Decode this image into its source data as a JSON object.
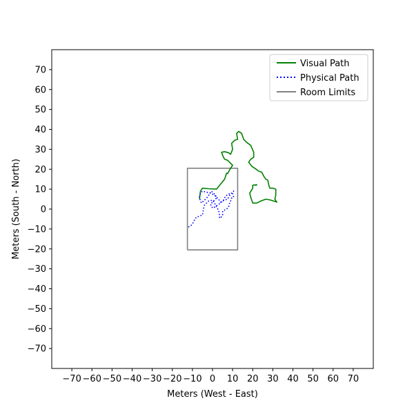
{
  "chart_data": {
    "type": "line",
    "title": "",
    "xlabel": "Meters (West - East)",
    "ylabel": "Meters (South - North)",
    "xlim": [
      -80,
      80
    ],
    "ylim": [
      -80,
      80
    ],
    "xticks": [
      -70,
      -60,
      -50,
      -40,
      -30,
      -20,
      -10,
      0,
      10,
      20,
      30,
      40,
      50,
      60,
      70
    ],
    "yticks": [
      -70,
      -60,
      -50,
      -40,
      -30,
      -20,
      -10,
      0,
      10,
      20,
      30,
      40,
      50,
      60,
      70
    ],
    "xtick_labels": [
      "−70",
      "−60",
      "−50",
      "−40",
      "−30",
      "−20",
      "−10",
      "0",
      "10",
      "20",
      "30",
      "40",
      "50",
      "60",
      "70"
    ],
    "ytick_labels": [
      "−70",
      "−60",
      "−50",
      "−40",
      "−30",
      "−20",
      "−10",
      "0",
      "10",
      "20",
      "30",
      "40",
      "50",
      "60",
      "70"
    ],
    "grid": false,
    "legend_position": "top-right",
    "series": [
      {
        "name": "Visual Path",
        "color": "#008000",
        "style": "solid",
        "points": [
          [
            -6.5,
            5
          ],
          [
            -6,
            9
          ],
          [
            -5,
            10.5
          ],
          [
            -2,
            10.2
          ],
          [
            2,
            10
          ],
          [
            4,
            12.5
          ],
          [
            6,
            15
          ],
          [
            7,
            18
          ],
          [
            7.5,
            17.8
          ],
          [
            9,
            20.5
          ],
          [
            10,
            22
          ],
          [
            7.5,
            24.5
          ],
          [
            6,
            25
          ],
          [
            5,
            27
          ],
          [
            4.5,
            28.5
          ],
          [
            6,
            28.8
          ],
          [
            8,
            28.3
          ],
          [
            9,
            27.5
          ],
          [
            10,
            30
          ],
          [
            9.5,
            33
          ],
          [
            11,
            34.5
          ],
          [
            12.5,
            35
          ],
          [
            12,
            38
          ],
          [
            13,
            39
          ],
          [
            14.5,
            38
          ],
          [
            15.5,
            35
          ],
          [
            17,
            33.5
          ],
          [
            19,
            32
          ],
          [
            20.5,
            28.5
          ],
          [
            20.5,
            26
          ],
          [
            19,
            25
          ],
          [
            18,
            23.5
          ],
          [
            19.5,
            21.5
          ],
          [
            21,
            20.5
          ],
          [
            23,
            19
          ],
          [
            24.5,
            18.5
          ],
          [
            25.5,
            16.5
          ],
          [
            26.5,
            15
          ],
          [
            27.5,
            14.5
          ],
          [
            28,
            12
          ],
          [
            28.5,
            10.5
          ],
          [
            30,
            10.5
          ],
          [
            31.5,
            10
          ],
          [
            31.5,
            7
          ],
          [
            31,
            5
          ],
          [
            32,
            3.5
          ],
          [
            29,
            4.5
          ],
          [
            26.5,
            5
          ],
          [
            24,
            4
          ],
          [
            22,
            3
          ],
          [
            20,
            3
          ],
          [
            19.5,
            4.5
          ],
          [
            19,
            6
          ],
          [
            18.5,
            8
          ],
          [
            20,
            10.5
          ],
          [
            20,
            12
          ],
          [
            22,
            12.2
          ],
          [
            21.5,
            11.8
          ]
        ]
      },
      {
        "name": "Physical Path",
        "color": "#0000ff",
        "style": "dotted",
        "points": [
          [
            -12,
            -9
          ],
          [
            -11,
            -8.5
          ],
          [
            -10,
            -7.5
          ],
          [
            -9,
            -5.5
          ],
          [
            -8,
            -4
          ],
          [
            -6.5,
            -3.5
          ],
          [
            -5,
            -3
          ],
          [
            -4.5,
            0
          ],
          [
            -4,
            2
          ],
          [
            -3,
            3
          ],
          [
            -2,
            4
          ],
          [
            0,
            4.5
          ],
          [
            1,
            3
          ],
          [
            2,
            1
          ],
          [
            3,
            -0.5
          ],
          [
            3.5,
            -3
          ],
          [
            3.5,
            -4.5
          ],
          [
            4,
            -4.5
          ],
          [
            5,
            -3
          ],
          [
            5,
            -1
          ],
          [
            7,
            0
          ],
          [
            8,
            1
          ],
          [
            8.5,
            3
          ],
          [
            9,
            4
          ],
          [
            9.5,
            5.5
          ],
          [
            10.5,
            6
          ],
          [
            10,
            8
          ],
          [
            10.5,
            9
          ],
          [
            9,
            7.5
          ],
          [
            8,
            6
          ],
          [
            7.5,
            5
          ],
          [
            6,
            4.5
          ],
          [
            5,
            4
          ],
          [
            4,
            3.5
          ],
          [
            3,
            5
          ],
          [
            2,
            6
          ],
          [
            1,
            7
          ],
          [
            -1,
            8
          ],
          [
            -3,
            8.5
          ],
          [
            -5,
            9
          ],
          [
            -6,
            8
          ],
          [
            -6.5,
            6
          ],
          [
            -6,
            4
          ],
          [
            -5.5,
            3
          ],
          [
            -4.5,
            4
          ],
          [
            -3.5,
            5
          ],
          [
            -2.5,
            6
          ],
          [
            -1.5,
            7.5
          ],
          [
            -0.5,
            9
          ],
          [
            0.5,
            8
          ],
          [
            1.5,
            7
          ],
          [
            2,
            5.5
          ],
          [
            1,
            4.5
          ],
          [
            0,
            3.5
          ],
          [
            -1,
            2.5
          ],
          [
            -0.5,
            1
          ],
          [
            0.5,
            0.5
          ],
          [
            1.5,
            1.5
          ],
          [
            2.5,
            2
          ],
          [
            4,
            3
          ],
          [
            5.5,
            4.5
          ],
          [
            6.5,
            6.5
          ],
          [
            8,
            7.5
          ],
          [
            9.5,
            8
          ]
        ]
      },
      {
        "name": "Room Limits",
        "color": "#808080",
        "style": "solid",
        "points": [
          [
            -12.5,
            -20.5
          ],
          [
            12.5,
            -20.5
          ],
          [
            12.5,
            20.5
          ],
          [
            -12.5,
            20.5
          ],
          [
            -12.5,
            -20.5
          ]
        ]
      }
    ]
  }
}
